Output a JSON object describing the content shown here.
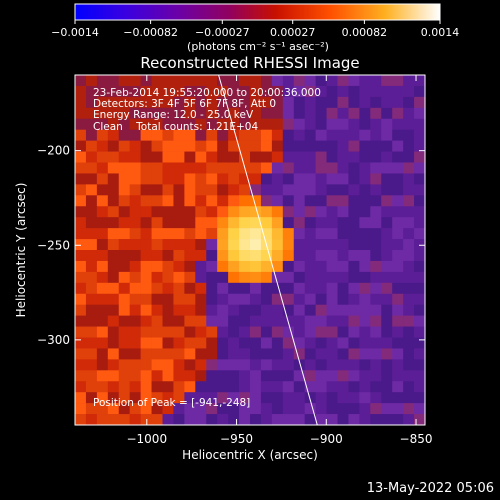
{
  "chart_data": {
    "type": "heatmap",
    "title": "Reconstructed RHESSI Image",
    "xlabel": "Heliocentric X (arcsec)",
    "ylabel": "Heliocentric Y (arcsec)",
    "xlim": [
      -1040,
      -845
    ],
    "ylim": [
      -345,
      -160
    ],
    "xticks": [
      -1000,
      -950,
      -900,
      -850
    ],
    "xtick_labels": [
      "−1000",
      "−950",
      "−900",
      "−850"
    ],
    "yticks": [
      -300,
      -250,
      -200
    ],
    "ytick_labels": [
      "−300",
      "−250",
      "−200"
    ],
    "colorbar": {
      "range": [
        -0.0014,
        0.0014
      ],
      "ticks": [
        -0.0014,
        -0.00082,
        -0.00027,
        0.00027,
        0.00082,
        0.0014
      ],
      "tick_labels": [
        "−0.0014",
        "−0.00082",
        "−0.00027",
        "0.00027",
        "0.00082",
        "0.0014"
      ],
      "unit_label": "(photons cm⁻² s⁻¹ asec⁻²)",
      "colormap": [
        "#0000ff",
        "#5a00c8",
        "#800080",
        "#c01800",
        "#ff3000",
        "#ff9000",
        "#ffd84a",
        "#ffffff"
      ]
    },
    "annotations": {
      "time_range": "23-Feb-2014 19:55:20.000 to 20:00:36.000",
      "detectors": "Detectors: 3F 4F 5F 6F 7F 8F, Att 0",
      "energy_range": "Energy Range: 12.0 - 25.0 keV",
      "clean": "Clean    Total counts: 1.21E+04",
      "peak": "Position of Peak = [-941,-248]"
    },
    "peak_position": [
      -941,
      -248
    ],
    "limb_line": [
      [
        -960,
        -160
      ],
      [
        -905,
        -345
      ]
    ],
    "background_color": "#5c1e96",
    "emission_color": "#d12a08"
  },
  "footer": {
    "timestamp": "13-May-2022 05:06"
  }
}
